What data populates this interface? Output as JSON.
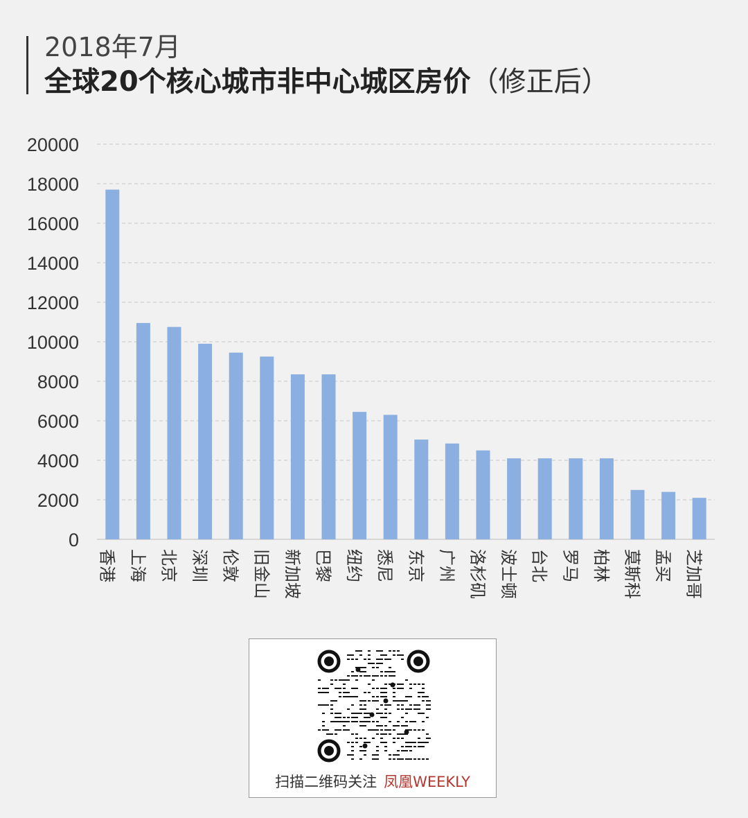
{
  "header": {
    "subtitle": "2018年7月",
    "title_main": "全球20个核心城市非中心城区房价",
    "title_paren": "（修正后）"
  },
  "chart_data": {
    "type": "bar",
    "title": "全球20个核心城市非中心城区房价（修正后）",
    "categories": [
      "香港",
      "上海",
      "北京",
      "深圳",
      "伦敦",
      "旧金山",
      "新加坡",
      "巴黎",
      "纽约",
      "悉尼",
      "东京",
      "广州",
      "洛杉矶",
      "波士顿",
      "台北",
      "罗马",
      "柏林",
      "莫斯科",
      "孟买",
      "芝加哥"
    ],
    "values": [
      17700,
      10950,
      10750,
      9900,
      9450,
      9250,
      8350,
      8350,
      6450,
      6300,
      5050,
      4850,
      4500,
      4100,
      4100,
      4100,
      4100,
      2500,
      2400,
      2100
    ],
    "ylim": [
      0,
      20000
    ],
    "yticks": [
      0,
      2000,
      4000,
      6000,
      8000,
      10000,
      12000,
      14000,
      16000,
      18000,
      20000
    ],
    "grid": true,
    "bar_color": "#8aafe0"
  },
  "footer": {
    "qr_caption": "扫描二维码关注",
    "brand": "凤凰WEEKLY",
    "brand_color": "#b5362e",
    "qr_icon": "qr-code-icon"
  }
}
